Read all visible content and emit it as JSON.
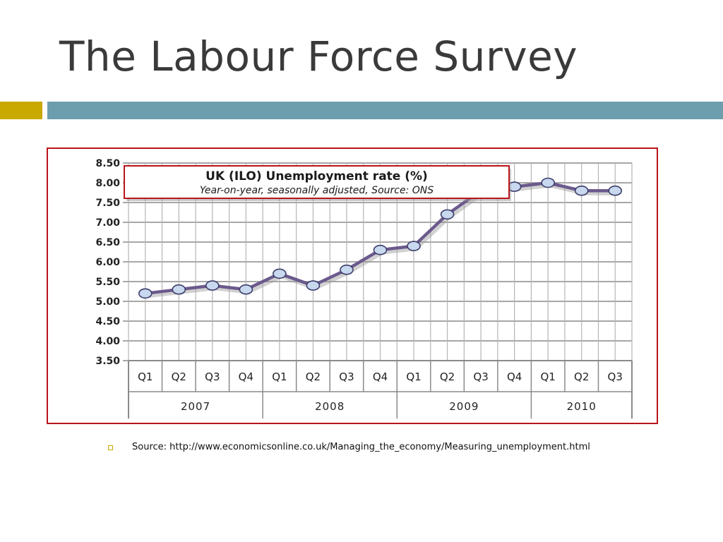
{
  "slide": {
    "title": "The Labour Force Survey",
    "source_text": "Source: http://www.economicsonline.co.uk/Managing_the_economy/Measuring_unemployment.html",
    "colors": {
      "accent_gold": "#c9a800",
      "accent_blue": "#6c9eae",
      "frame_red": "#b9141a"
    }
  },
  "chart_data": {
    "type": "line",
    "title": "UK (ILO) Unemployment rate (%)",
    "subtitle": "Year-on-year, seasonally adjusted, Source: ONS",
    "xlabel": "",
    "ylabel": "",
    "ylim": [
      3.5,
      8.5
    ],
    "y_ticks": [
      "3.50",
      "4.00",
      "4.50",
      "5.00",
      "5.50",
      "6.00",
      "6.50",
      "7.00",
      "7.50",
      "8.00",
      "8.50"
    ],
    "categories": [
      "Q1",
      "Q2",
      "Q3",
      "Q4",
      "Q1",
      "Q2",
      "Q3",
      "Q4",
      "Q1",
      "Q2",
      "Q3",
      "Q4",
      "Q1",
      "Q2",
      "Q3"
    ],
    "groups": [
      {
        "label": "2007",
        "count": 4
      },
      {
        "label": "2008",
        "count": 4
      },
      {
        "label": "2009",
        "count": 4
      },
      {
        "label": "2010",
        "count": 3
      }
    ],
    "series": [
      {
        "values": [
          5.2,
          5.3,
          5.4,
          5.3,
          5.7,
          5.4,
          5.8,
          6.3,
          6.4,
          7.2,
          7.8,
          7.9,
          8.0,
          7.8,
          7.8
        ]
      }
    ],
    "grid": true,
    "legend": "none",
    "colors": {
      "line": "#6b5a8c",
      "marker_fill": "#c8d8ef",
      "marker_stroke": "#3d3d6b",
      "grid": "#8a8a8a"
    }
  }
}
